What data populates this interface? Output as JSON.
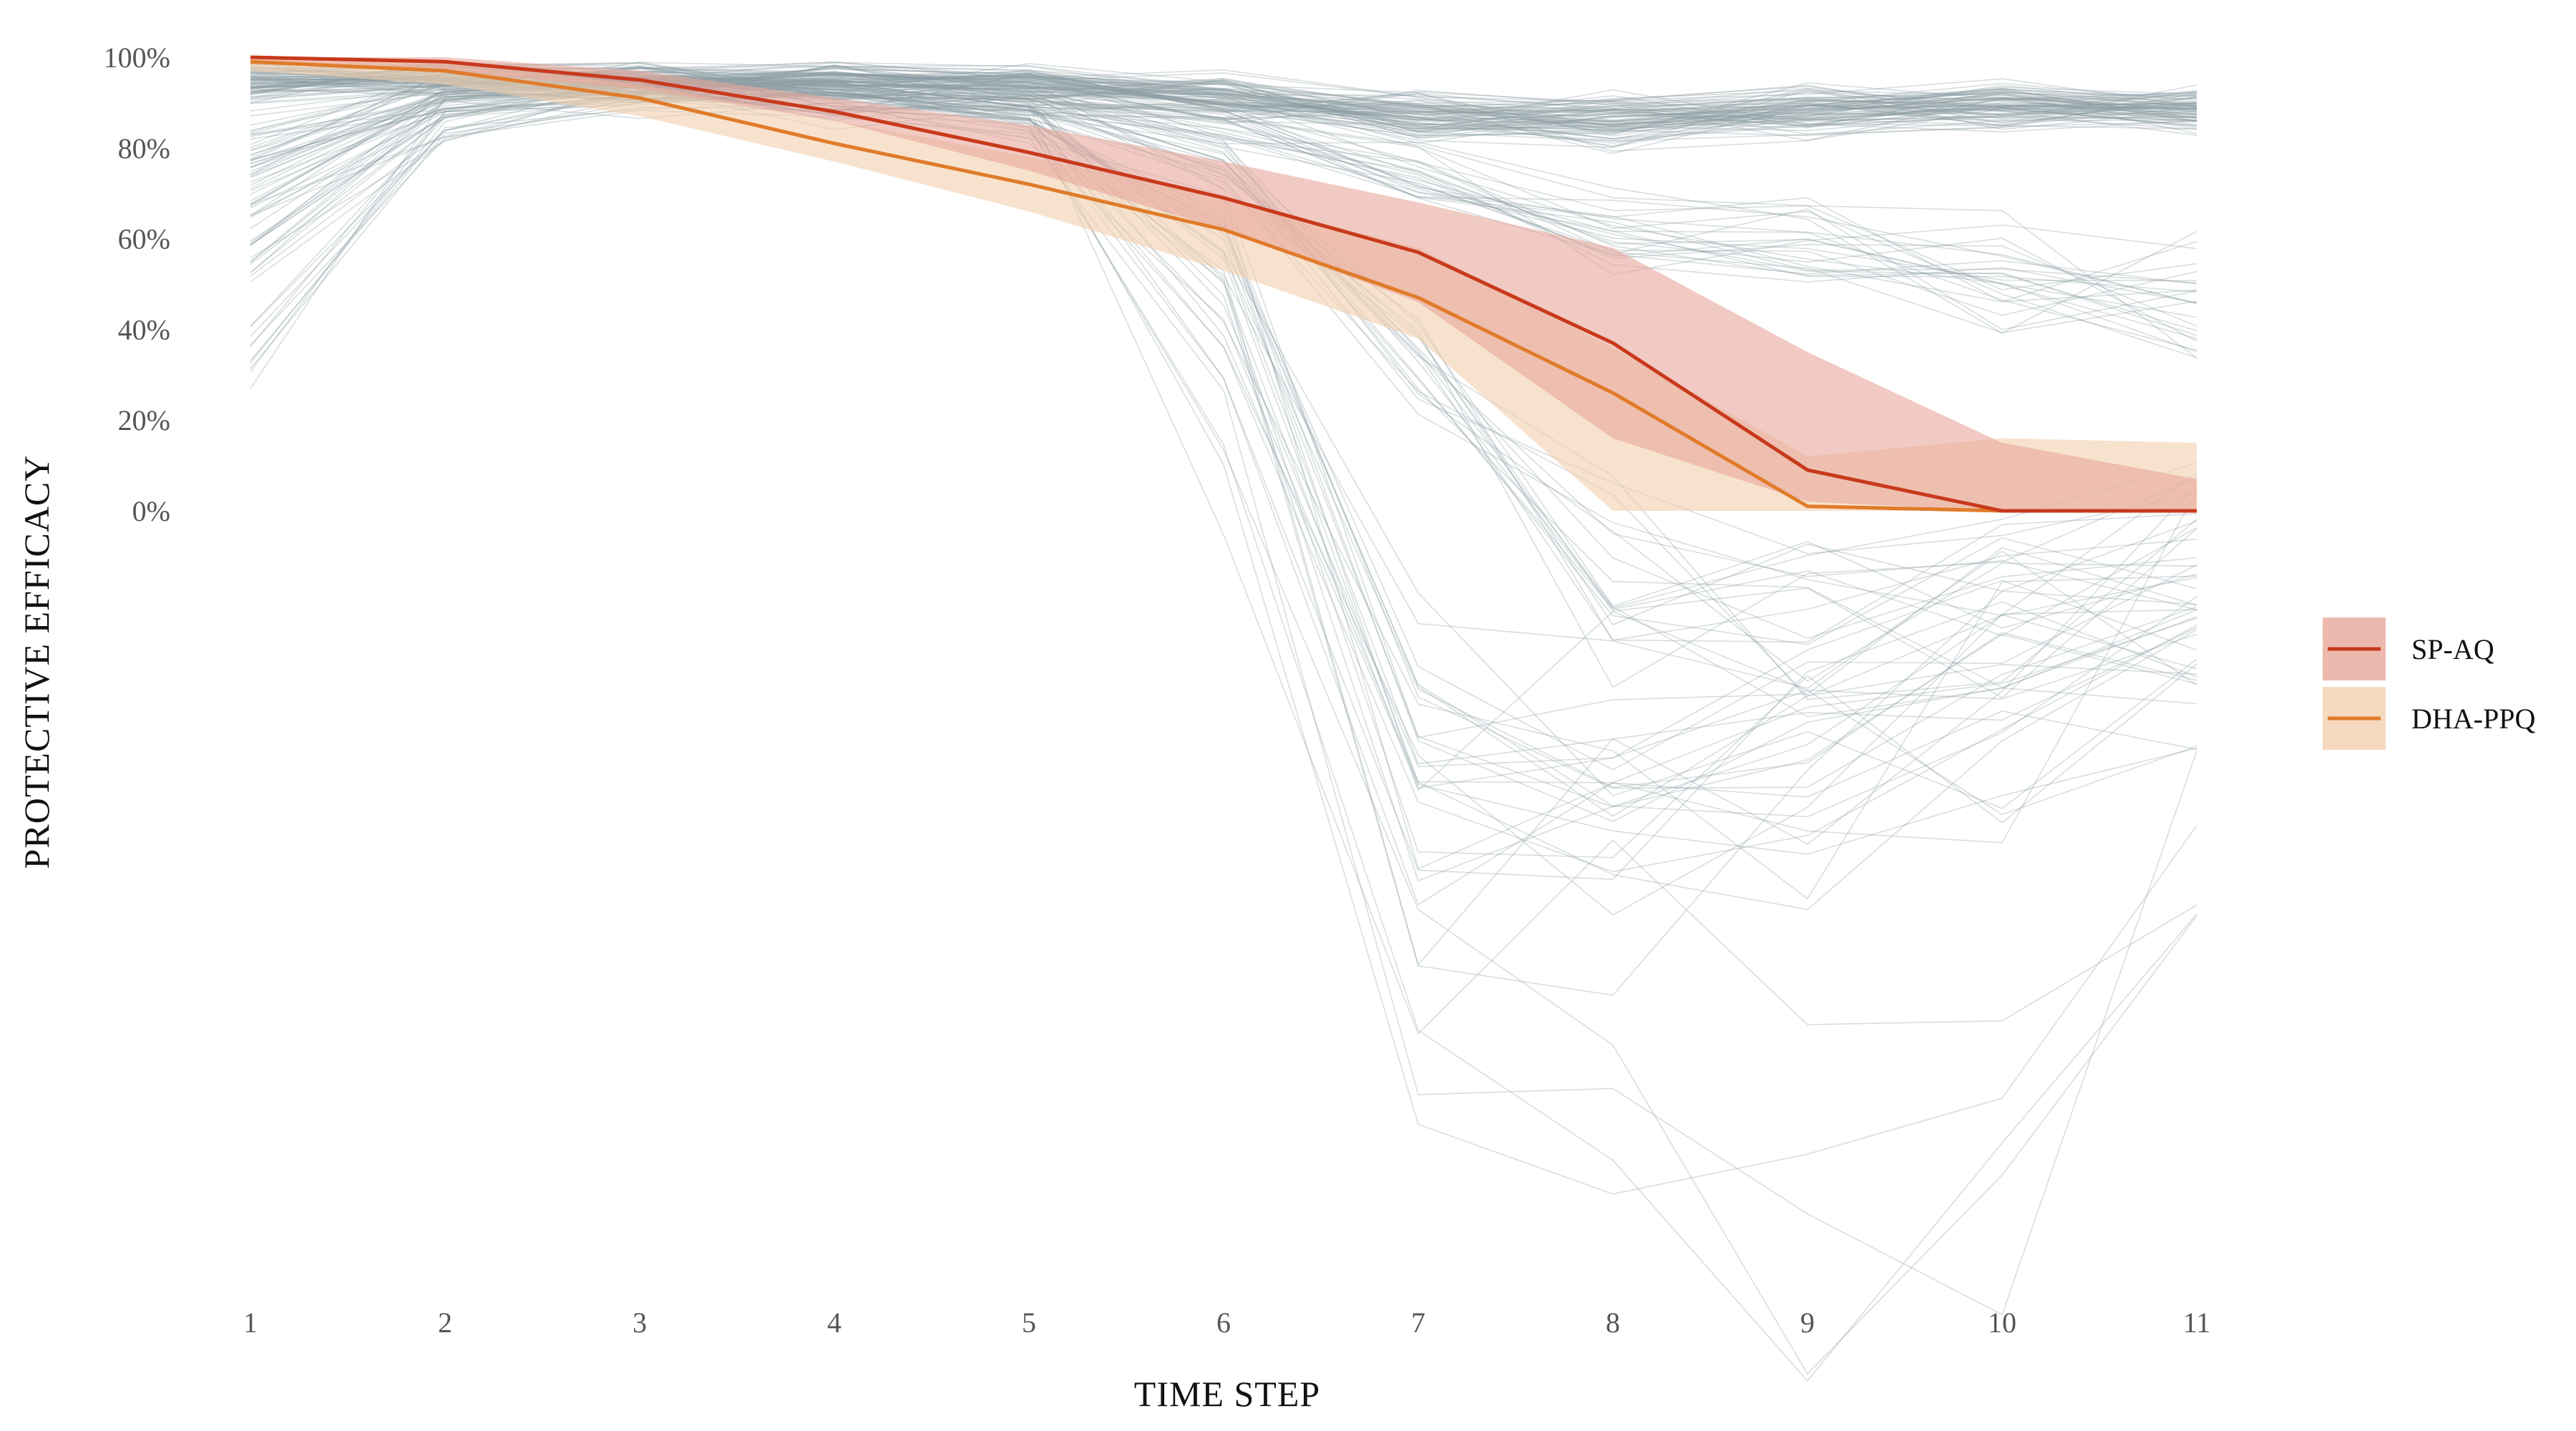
{
  "chart_data": {
    "type": "line",
    "xlabel": "TIME STEP",
    "ylabel": "PROTECTIVE EFFICACY",
    "x": [
      1,
      2,
      3,
      4,
      5,
      6,
      7,
      8,
      9,
      10,
      11
    ],
    "x_ticks": [
      "1",
      "2",
      "3",
      "4",
      "5",
      "6",
      "7",
      "8",
      "9",
      "10",
      "11"
    ],
    "y_ticks": [
      "0%",
      "20%",
      "40%",
      "60%",
      "80%",
      "100%"
    ],
    "y_tick_values": [
      0,
      20,
      40,
      60,
      80,
      100
    ],
    "xlim": [
      1,
      11
    ],
    "ylim": [
      -165,
      100
    ],
    "grid": false,
    "legend_position": "right",
    "series": [
      {
        "name": "SP-AQ",
        "color": "#c8391b",
        "band_color": "#e8a79b",
        "values": [
          100,
          99,
          95,
          88,
          79,
          69,
          57,
          37,
          9,
          0,
          0
        ],
        "band_low": [
          99,
          97,
          93,
          86,
          75,
          62,
          46,
          16,
          2,
          0,
          0
        ],
        "band_high": [
          100,
          100,
          97,
          91,
          85,
          77,
          68,
          58,
          35,
          15,
          7
        ]
      },
      {
        "name": "DHA-PPQ",
        "color": "#e07b2a",
        "band_color": "#f2cfae",
        "values": [
          99,
          97,
          91,
          81,
          72,
          62,
          47,
          26,
          1,
          0,
          0
        ],
        "band_low": [
          97,
          94,
          87,
          77,
          66,
          53,
          38,
          0,
          0,
          0,
          0
        ],
        "band_high": [
          100,
          99,
          94,
          86,
          78,
          69,
          58,
          36,
          12,
          16,
          15
        ]
      }
    ],
    "background_traces": {
      "color": "#8c9ea3",
      "description_count": 160,
      "clusters": [
        {
          "weight": 85,
          "values": [
            95,
            96,
            95,
            95,
            94,
            91,
            87,
            86,
            88,
            89,
            88
          ]
        },
        {
          "weight": 25,
          "values": [
            80,
            93,
            94,
            93,
            91,
            86,
            72,
            62,
            58,
            52,
            45
          ]
        },
        {
          "weight": 18,
          "values": [
            70,
            90,
            93,
            92,
            90,
            78,
            30,
            -15,
            -25,
            -20,
            -10
          ]
        },
        {
          "weight": 15,
          "values": [
            55,
            88,
            92,
            91,
            88,
            60,
            -45,
            -60,
            -55,
            -35,
            -30
          ]
        },
        {
          "weight": 12,
          "values": [
            40,
            86,
            92,
            90,
            86,
            40,
            -65,
            -75,
            -60,
            -40,
            -25
          ]
        },
        {
          "weight": 5,
          "values": [
            90,
            94,
            93,
            92,
            88,
            10,
            -110,
            -125,
            -160,
            -128,
            -70
          ]
        }
      ]
    }
  }
}
